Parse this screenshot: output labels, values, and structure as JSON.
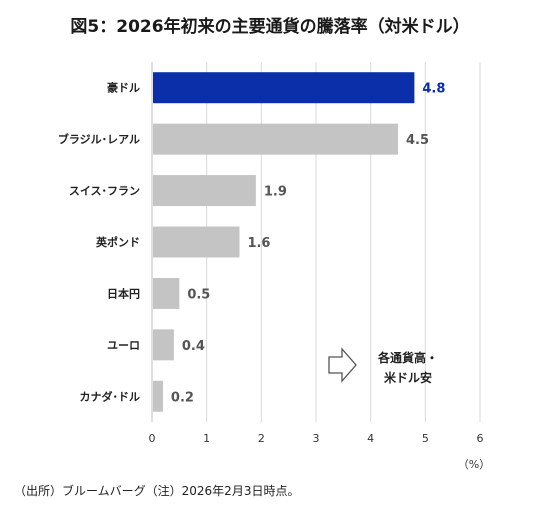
{
  "title": "図5：2026年初来の主要通貨の騰落率（対米ドル）",
  "source_note": "（出所）ブルームバーグ（注）2026年2月3日時点。",
  "annotation": {
    "line1": "各通貨高・",
    "line2": "米ドル安"
  },
  "colors": {
    "highlight": "#0b2fa8",
    "bar": "#c4c4c4",
    "highlight_label": "#0b2fa8",
    "label": "#555555",
    "grid": "#d9d9d9"
  },
  "chart_data": {
    "type": "bar",
    "orientation": "horizontal",
    "categories": [
      "豪ドル",
      "ブラジル･レアル",
      "スイス･フラン",
      "英ポンド",
      "日本円",
      "ユーロ",
      "カナダ･ドル"
    ],
    "values": [
      4.8,
      4.5,
      1.9,
      1.6,
      0.5,
      0.4,
      0.2
    ],
    "data_labels": [
      "4.8",
      "4.5",
      "1.9",
      "1.6",
      "0.5",
      "0.4",
      "0.2"
    ],
    "highlight_index": 0,
    "xlim": [
      0,
      6
    ],
    "xticks": [
      "0",
      "1",
      "2",
      "3",
      "4",
      "5",
      "6"
    ],
    "xunit": "（%）",
    "grid": "vertical"
  }
}
